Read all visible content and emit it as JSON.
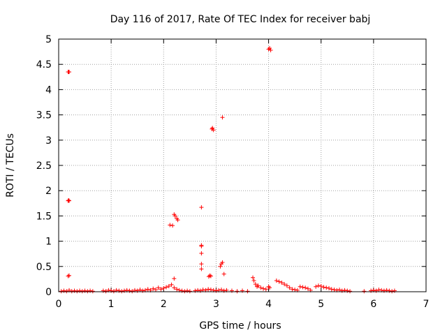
{
  "chart_data": {
    "type": "scatter",
    "title": "Day 116 of 2017, Rate Of TEC Index for receiver babj",
    "xlabel": "GPS time / hours",
    "ylabel": "ROTI / TECUs",
    "xlim": [
      0,
      7
    ],
    "ylim": [
      0,
      5
    ],
    "xticks": [
      "0",
      "1",
      "2",
      "3",
      "4",
      "5",
      "6",
      "7"
    ],
    "yticks": [
      "0",
      "0.5",
      "1",
      "1.5",
      "2",
      "2.5",
      "3",
      "3.5",
      "4",
      "4.5",
      "5"
    ],
    "grid": true,
    "marker": "+",
    "color": "#ff0000",
    "series": [
      {
        "points": [
          [
            0.05,
            0.01
          ],
          [
            0.1,
            0.02
          ],
          [
            0.15,
            0.01
          ],
          [
            0.2,
            0.03
          ],
          [
            0.25,
            0.01
          ],
          [
            0.3,
            0.02
          ],
          [
            0.35,
            0.01
          ],
          [
            0.4,
            0.02
          ],
          [
            0.45,
            0.01
          ],
          [
            0.5,
            0.02
          ],
          [
            0.55,
            0.01
          ],
          [
            0.6,
            0.02
          ],
          [
            0.65,
            0.01
          ],
          [
            0.18,
            4.35
          ],
          [
            0.19,
            4.35
          ],
          [
            0.2,
            4.35
          ],
          [
            0.18,
            1.8
          ],
          [
            0.19,
            1.81
          ],
          [
            0.2,
            1.8
          ],
          [
            0.18,
            0.31
          ],
          [
            0.2,
            0.32
          ],
          [
            0.85,
            0.02
          ],
          [
            0.9,
            0.01
          ],
          [
            0.95,
            0.03
          ],
          [
            1.0,
            0.02
          ],
          [
            1.05,
            0.01
          ],
          [
            1.1,
            0.03
          ],
          [
            1.15,
            0.02
          ],
          [
            1.2,
            0.01
          ],
          [
            1.25,
            0.02
          ],
          [
            1.3,
            0.03
          ],
          [
            1.35,
            0.02
          ],
          [
            1.4,
            0.01
          ],
          [
            1.45,
            0.03
          ],
          [
            1.5,
            0.02
          ],
          [
            1.55,
            0.04
          ],
          [
            1.6,
            0.02
          ],
          [
            1.65,
            0.03
          ],
          [
            1.7,
            0.05
          ],
          [
            1.75,
            0.03
          ],
          [
            1.8,
            0.06
          ],
          [
            1.85,
            0.04
          ],
          [
            1.9,
            0.08
          ],
          [
            1.95,
            0.05
          ],
          [
            2.0,
            0.07
          ],
          [
            2.05,
            0.09
          ],
          [
            2.1,
            0.11
          ],
          [
            2.15,
            0.14
          ],
          [
            2.2,
            0.08
          ],
          [
            2.25,
            0.05
          ],
          [
            2.3,
            0.03
          ],
          [
            2.35,
            0.02
          ],
          [
            2.4,
            0.01
          ],
          [
            2.45,
            0.02
          ],
          [
            2.5,
            0.01
          ],
          [
            2.12,
            1.32
          ],
          [
            2.17,
            1.31
          ],
          [
            2.2,
            1.53
          ],
          [
            2.22,
            1.5
          ],
          [
            2.25,
            1.45
          ],
          [
            2.27,
            1.42
          ],
          [
            2.2,
            0.26
          ],
          [
            2.6,
            0.02
          ],
          [
            2.65,
            0.03
          ],
          [
            2.7,
            0.02
          ],
          [
            2.75,
            0.04
          ],
          [
            2.8,
            0.03
          ],
          [
            2.85,
            0.05
          ],
          [
            2.9,
            0.04
          ],
          [
            2.95,
            0.03
          ],
          [
            3.0,
            0.02
          ],
          [
            3.05,
            0.03
          ],
          [
            3.1,
            0.04
          ],
          [
            3.15,
            0.02
          ],
          [
            3.2,
            0.03
          ],
          [
            3.3,
            0.02
          ],
          [
            3.4,
            0.01
          ],
          [
            3.5,
            0.02
          ],
          [
            3.6,
            0.01
          ],
          [
            2.72,
            1.67
          ],
          [
            2.72,
            0.92
          ],
          [
            2.72,
            0.9
          ],
          [
            2.72,
            0.76
          ],
          [
            2.72,
            0.55
          ],
          [
            2.72,
            0.45
          ],
          [
            2.86,
            0.3
          ],
          [
            2.88,
            0.32
          ],
          [
            2.9,
            0.31
          ],
          [
            2.92,
            3.22
          ],
          [
            2.93,
            3.24
          ],
          [
            2.95,
            3.2
          ],
          [
            3.12,
            3.45
          ],
          [
            3.1,
            0.55
          ],
          [
            3.12,
            0.58
          ],
          [
            3.08,
            0.5
          ],
          [
            3.15,
            0.35
          ],
          [
            3.7,
            0.28
          ],
          [
            3.72,
            0.22
          ],
          [
            3.75,
            0.15
          ],
          [
            3.78,
            0.1
          ],
          [
            3.8,
            0.12
          ],
          [
            3.85,
            0.08
          ],
          [
            3.9,
            0.06
          ],
          [
            3.95,
            0.05
          ],
          [
            4.0,
            0.1
          ],
          [
            4.02,
            0.08
          ],
          [
            4.0,
            4.8
          ],
          [
            4.02,
            4.82
          ],
          [
            4.04,
            4.78
          ],
          [
            4.15,
            0.22
          ],
          [
            4.2,
            0.2
          ],
          [
            4.25,
            0.18
          ],
          [
            4.3,
            0.15
          ],
          [
            4.35,
            0.12
          ],
          [
            4.4,
            0.08
          ],
          [
            4.45,
            0.05
          ],
          [
            4.5,
            0.04
          ],
          [
            4.55,
            0.03
          ],
          [
            4.6,
            0.1
          ],
          [
            4.65,
            0.09
          ],
          [
            4.7,
            0.08
          ],
          [
            4.75,
            0.06
          ],
          [
            4.8,
            0.03
          ],
          [
            4.9,
            0.1
          ],
          [
            4.95,
            0.12
          ],
          [
            5.0,
            0.11
          ],
          [
            5.05,
            0.09
          ],
          [
            5.1,
            0.08
          ],
          [
            5.15,
            0.07
          ],
          [
            5.2,
            0.05
          ],
          [
            5.25,
            0.04
          ],
          [
            5.3,
            0.03
          ],
          [
            5.35,
            0.04
          ],
          [
            5.4,
            0.02
          ],
          [
            5.45,
            0.03
          ],
          [
            5.5,
            0.02
          ],
          [
            5.55,
            0.01
          ],
          [
            5.82,
            0.01
          ],
          [
            5.95,
            0.02
          ],
          [
            6.0,
            0.03
          ],
          [
            6.05,
            0.02
          ],
          [
            6.1,
            0.04
          ],
          [
            6.15,
            0.03
          ],
          [
            6.2,
            0.02
          ],
          [
            6.25,
            0.03
          ],
          [
            6.3,
            0.02
          ],
          [
            6.35,
            0.01
          ],
          [
            6.4,
            0.02
          ]
        ]
      }
    ]
  }
}
